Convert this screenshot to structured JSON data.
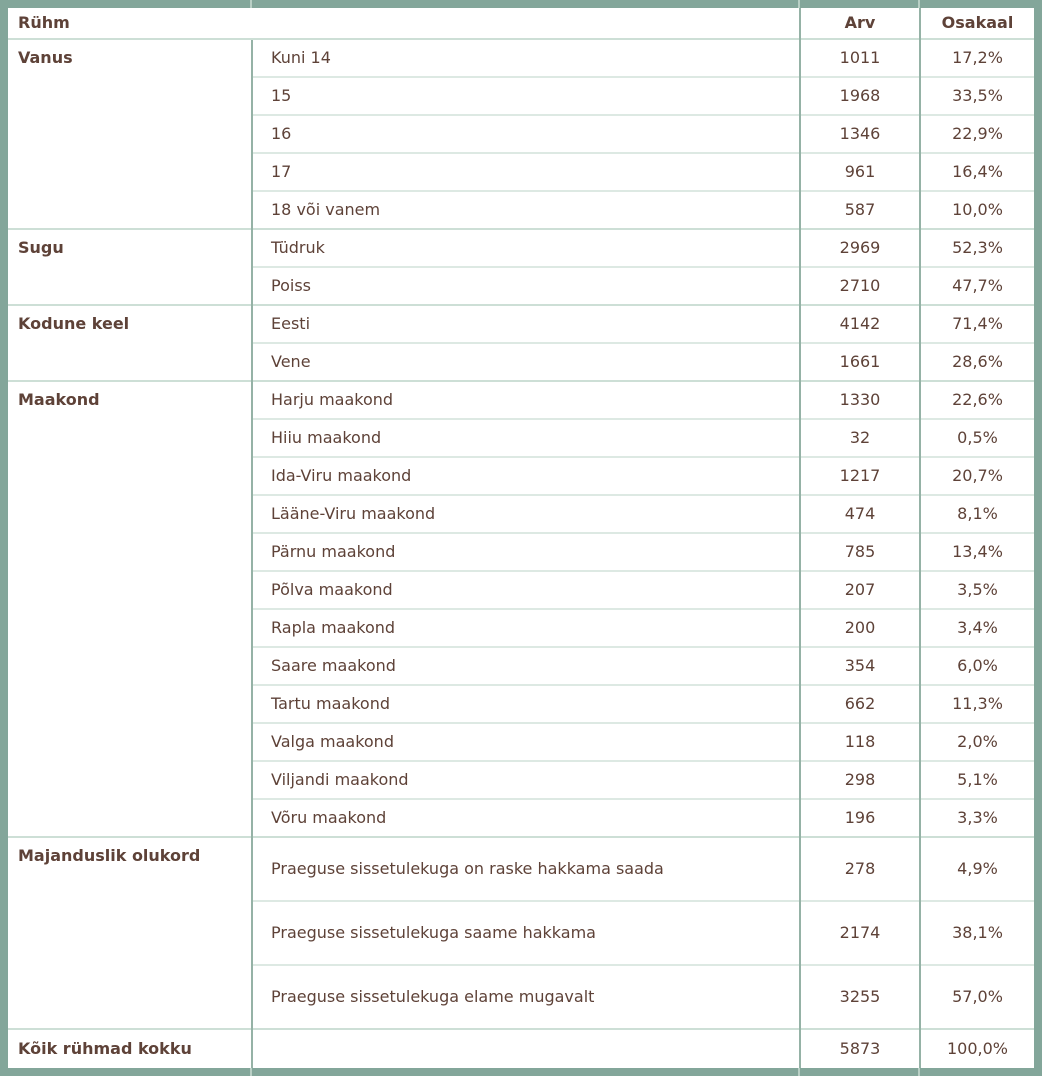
{
  "colors": {
    "frame": "#83a69a",
    "vertical_line": "#95b2a6",
    "horizontal_line_sub": "#dde9e3",
    "horizontal_line_group": "#cddfd6",
    "text": "#5e4238",
    "background": "#ffffff"
  },
  "table": {
    "header": {
      "group": "Rühm",
      "count": "Arv",
      "share": "Osakaal"
    },
    "groups": [
      {
        "label": "Vanus",
        "rows": [
          {
            "label": "Kuni 14",
            "count": "1011",
            "share": "17,2%"
          },
          {
            "label": "15",
            "count": "1968",
            "share": "33,5%"
          },
          {
            "label": "16",
            "count": "1346",
            "share": "22,9%"
          },
          {
            "label": "17",
            "count": "961",
            "share": "16,4%"
          },
          {
            "label": "18 või vanem",
            "count": "587",
            "share": "10,0%"
          }
        ]
      },
      {
        "label": "Sugu",
        "rows": [
          {
            "label": "Tüdruk",
            "count": "2969",
            "share": "52,3%"
          },
          {
            "label": "Poiss",
            "count": "2710",
            "share": "47,7%"
          }
        ]
      },
      {
        "label": "Kodune keel",
        "rows": [
          {
            "label": "Eesti",
            "count": "4142",
            "share": "71,4%"
          },
          {
            "label": "Vene",
            "count": "1661",
            "share": "28,6%"
          }
        ]
      },
      {
        "label": "Maakond",
        "rows": [
          {
            "label": "Harju maakond",
            "count": "1330",
            "share": "22,6%"
          },
          {
            "label": "Hiiu maakond",
            "count": "32",
            "share": "0,5%"
          },
          {
            "label": "Ida-Viru maakond",
            "count": "1217",
            "share": "20,7%"
          },
          {
            "label": "Lääne-Viru maakond",
            "count": "474",
            "share": "8,1%"
          },
          {
            "label": "Pärnu maakond",
            "count": "785",
            "share": "13,4%"
          },
          {
            "label": "Põlva maakond",
            "count": "207",
            "share": "3,5%"
          },
          {
            "label": "Rapla maakond",
            "count": "200",
            "share": "3,4%"
          },
          {
            "label": "Saare maakond",
            "count": "354",
            "share": "6,0%"
          },
          {
            "label": "Tartu maakond",
            "count": "662",
            "share": "11,3%"
          },
          {
            "label": "Valga maakond",
            "count": "118",
            "share": "2,0%"
          },
          {
            "label": "Viljandi maakond",
            "count": "298",
            "share": "5,1%"
          },
          {
            "label": "Võru maakond",
            "count": "196",
            "share": "3,3%"
          }
        ]
      },
      {
        "label": "Majanduslik olukord",
        "tall": true,
        "rows": [
          {
            "label": "Praeguse sissetulekuga on raske hakkama saada",
            "count": "278",
            "share": "4,9%"
          },
          {
            "label": "Praeguse sissetulekuga saame hakkama",
            "count": "2174",
            "share": "38,1%"
          },
          {
            "label": "Praeguse sissetulekuga elame mugavalt",
            "count": "3255",
            "share": "57,0%"
          }
        ]
      }
    ],
    "total": {
      "label": "Kõik rühmad kokku",
      "count": "5873",
      "share": "100,0%"
    }
  }
}
